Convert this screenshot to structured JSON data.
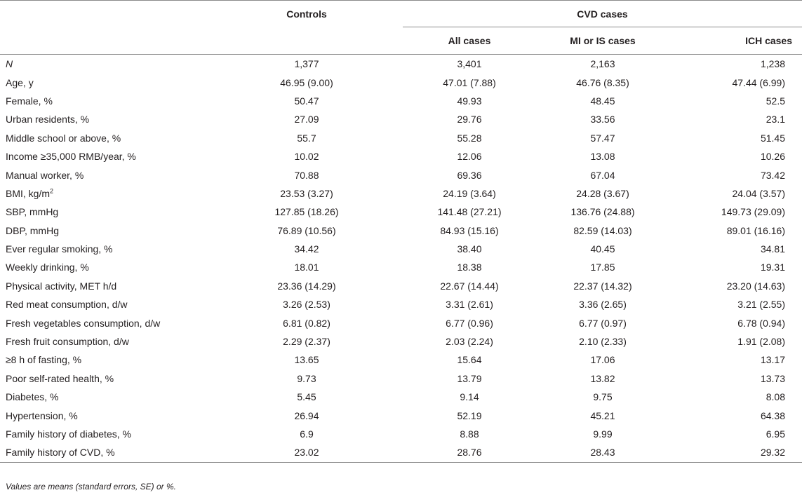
{
  "header": {
    "controls": "Controls",
    "cvd_cases": "CVD cases",
    "all_cases": "All cases",
    "mi_is_cases": "MI or IS cases",
    "ich_cases": "ICH cases"
  },
  "rows": [
    {
      "label": "N",
      "controls": "1,377",
      "all": "3,401",
      "mi_is": "2,163",
      "ich": "1,238"
    },
    {
      "label": "Age, y",
      "controls": "46.95 (9.00)",
      "all": "47.01 (7.88)",
      "mi_is": "46.76 (8.35)",
      "ich": "47.44 (6.99)"
    },
    {
      "label": "Female, %",
      "controls": "50.47",
      "all": "49.93",
      "mi_is": "48.45",
      "ich": "52.5"
    },
    {
      "label": "Urban residents, %",
      "controls": "27.09",
      "all": "29.76",
      "mi_is": "33.56",
      "ich": "23.1"
    },
    {
      "label": "Middle school or above, %",
      "controls": "55.7",
      "all": "55.28",
      "mi_is": "57.47",
      "ich": "51.45"
    },
    {
      "label": "Income ≥35,000 RMB/year, %",
      "controls": "10.02",
      "all": "12.06",
      "mi_is": "13.08",
      "ich": "10.26"
    },
    {
      "label": "Manual worker, %",
      "controls": "70.88",
      "all": "69.36",
      "mi_is": "67.04",
      "ich": "73.42"
    },
    {
      "label": "BMI, kg/m",
      "label_sup": "2",
      "controls": "23.53 (3.27)",
      "all": "24.19 (3.64)",
      "mi_is": "24.28 (3.67)",
      "ich": "24.04 (3.57)"
    },
    {
      "label": "SBP, mmHg",
      "controls": "127.85 (18.26)",
      "all": "141.48 (27.21)",
      "mi_is": "136.76 (24.88)",
      "ich": "149.73 (29.09)"
    },
    {
      "label": "DBP, mmHg",
      "controls": "76.89 (10.56)",
      "all": "84.93 (15.16)",
      "mi_is": "82.59 (14.03)",
      "ich": "89.01 (16.16)"
    },
    {
      "label": "Ever regular smoking, %",
      "controls": "34.42",
      "all": "38.40",
      "mi_is": "40.45",
      "ich": "34.81"
    },
    {
      "label": "Weekly drinking, %",
      "controls": "18.01",
      "all": "18.38",
      "mi_is": "17.85",
      "ich": "19.31"
    },
    {
      "label": "Physical activity, MET h/d",
      "controls": "23.36 (14.29)",
      "all": "22.67 (14.44)",
      "mi_is": "22.37 (14.32)",
      "ich": "23.20 (14.63)"
    },
    {
      "label": "Red meat consumption, d/w",
      "controls": "3.26 (2.53)",
      "all": "3.31 (2.61)",
      "mi_is": "3.36 (2.65)",
      "ich": "3.21 (2.55)"
    },
    {
      "label": "Fresh vegetables consumption, d/w",
      "controls": "6.81 (0.82)",
      "all": "6.77 (0.96)",
      "mi_is": "6.77 (0.97)",
      "ich": "6.78 (0.94)"
    },
    {
      "label": "Fresh fruit consumption, d/w",
      "controls": "2.29 (2.37)",
      "all": "2.03 (2.24)",
      "mi_is": "2.10 (2.33)",
      "ich": "1.91 (2.08)"
    },
    {
      "label": "≥8 h of fasting, %",
      "controls": "13.65",
      "all": "15.64",
      "mi_is": "17.06",
      "ich": "13.17"
    },
    {
      "label": "Poor self-rated health, %",
      "controls": "9.73",
      "all": "13.79",
      "mi_is": "13.82",
      "ich": "13.73"
    },
    {
      "label": "Diabetes, %",
      "controls": "5.45",
      "all": "9.14",
      "mi_is": "9.75",
      "ich": "8.08"
    },
    {
      "label": "Hypertension, %",
      "controls": "26.94",
      "all": "52.19",
      "mi_is": "45.21",
      "ich": "64.38"
    },
    {
      "label": "Family history of diabetes, %",
      "controls": "6.9",
      "all": "8.88",
      "mi_is": "9.99",
      "ich": "6.95"
    },
    {
      "label": "Family history of CVD, %",
      "controls": "23.02",
      "all": "28.76",
      "mi_is": "28.43",
      "ich": "29.32"
    }
  ],
  "footnote": "Values are means (standard errors, SE) or %."
}
